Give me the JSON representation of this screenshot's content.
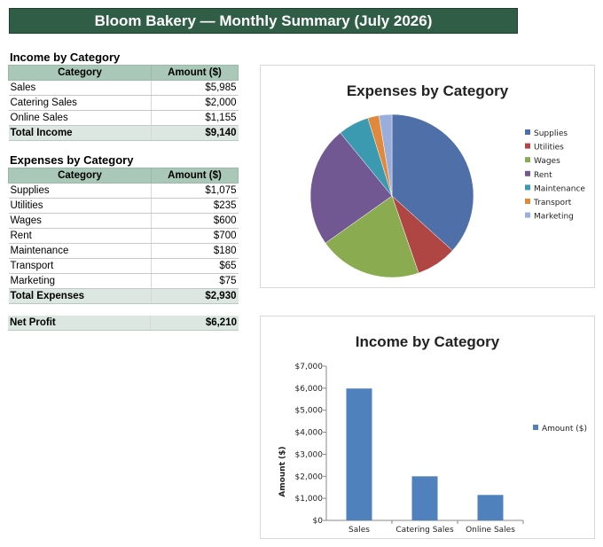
{
  "header": {
    "title": "Bloom Bakery — Monthly Summary (July 2026)"
  },
  "income_table": {
    "title": "Income by Category",
    "col_category": "Category",
    "col_amount": "Amount ($)",
    "rows": [
      {
        "category": "Sales",
        "amount": "$5,985"
      },
      {
        "category": "Catering Sales",
        "amount": "$2,000"
      },
      {
        "category": "Online Sales",
        "amount": "$1,155"
      }
    ],
    "total_label": "Total Income",
    "total_value": "$9,140"
  },
  "expenses_table": {
    "title": "Expenses by Category",
    "col_category": "Category",
    "col_amount": "Amount ($)",
    "rows": [
      {
        "category": "Supplies",
        "amount": "$1,075"
      },
      {
        "category": "Utilities",
        "amount": "$235"
      },
      {
        "category": "Wages",
        "amount": "$600"
      },
      {
        "category": "Rent",
        "amount": "$700"
      },
      {
        "category": "Maintenance",
        "amount": "$180"
      },
      {
        "category": "Transport",
        "amount": "$65"
      },
      {
        "category": "Marketing",
        "amount": "$75"
      }
    ],
    "total_label": "Total Expenses",
    "total_value": "$2,930"
  },
  "net_profit": {
    "label": "Net Profit",
    "value": "$6,210"
  },
  "colors": {
    "banner": "#2f5d46",
    "table_header": "#a9c8b7",
    "total_row": "#dbe7e0",
    "bar": "#4f81bd"
  },
  "chart_data": [
    {
      "type": "pie",
      "title": "Expenses by Category",
      "categories": [
        "Supplies",
        "Utilities",
        "Wages",
        "Rent",
        "Maintenance",
        "Transport",
        "Marketing"
      ],
      "values": [
        1075,
        235,
        600,
        700,
        180,
        65,
        75
      ],
      "colors": [
        "#4f6fa8",
        "#b04643",
        "#8aab4f",
        "#725892",
        "#3b9ab0",
        "#e0883c",
        "#9aaedb"
      ],
      "legend_position": "right"
    },
    {
      "type": "bar",
      "title": "Income by Category",
      "categories": [
        "Sales",
        "Catering Sales",
        "Online Sales"
      ],
      "series": [
        {
          "name": "Amount ($)",
          "values": [
            5985,
            2000,
            1155
          ]
        }
      ],
      "ylabel": "Amount ($)",
      "ylim": [
        0,
        7000
      ],
      "yticks": [
        "$0",
        "$1,000",
        "$2,000",
        "$3,000",
        "$4,000",
        "$5,000",
        "$6,000",
        "$7,000"
      ],
      "grid": false,
      "legend_position": "right"
    }
  ]
}
